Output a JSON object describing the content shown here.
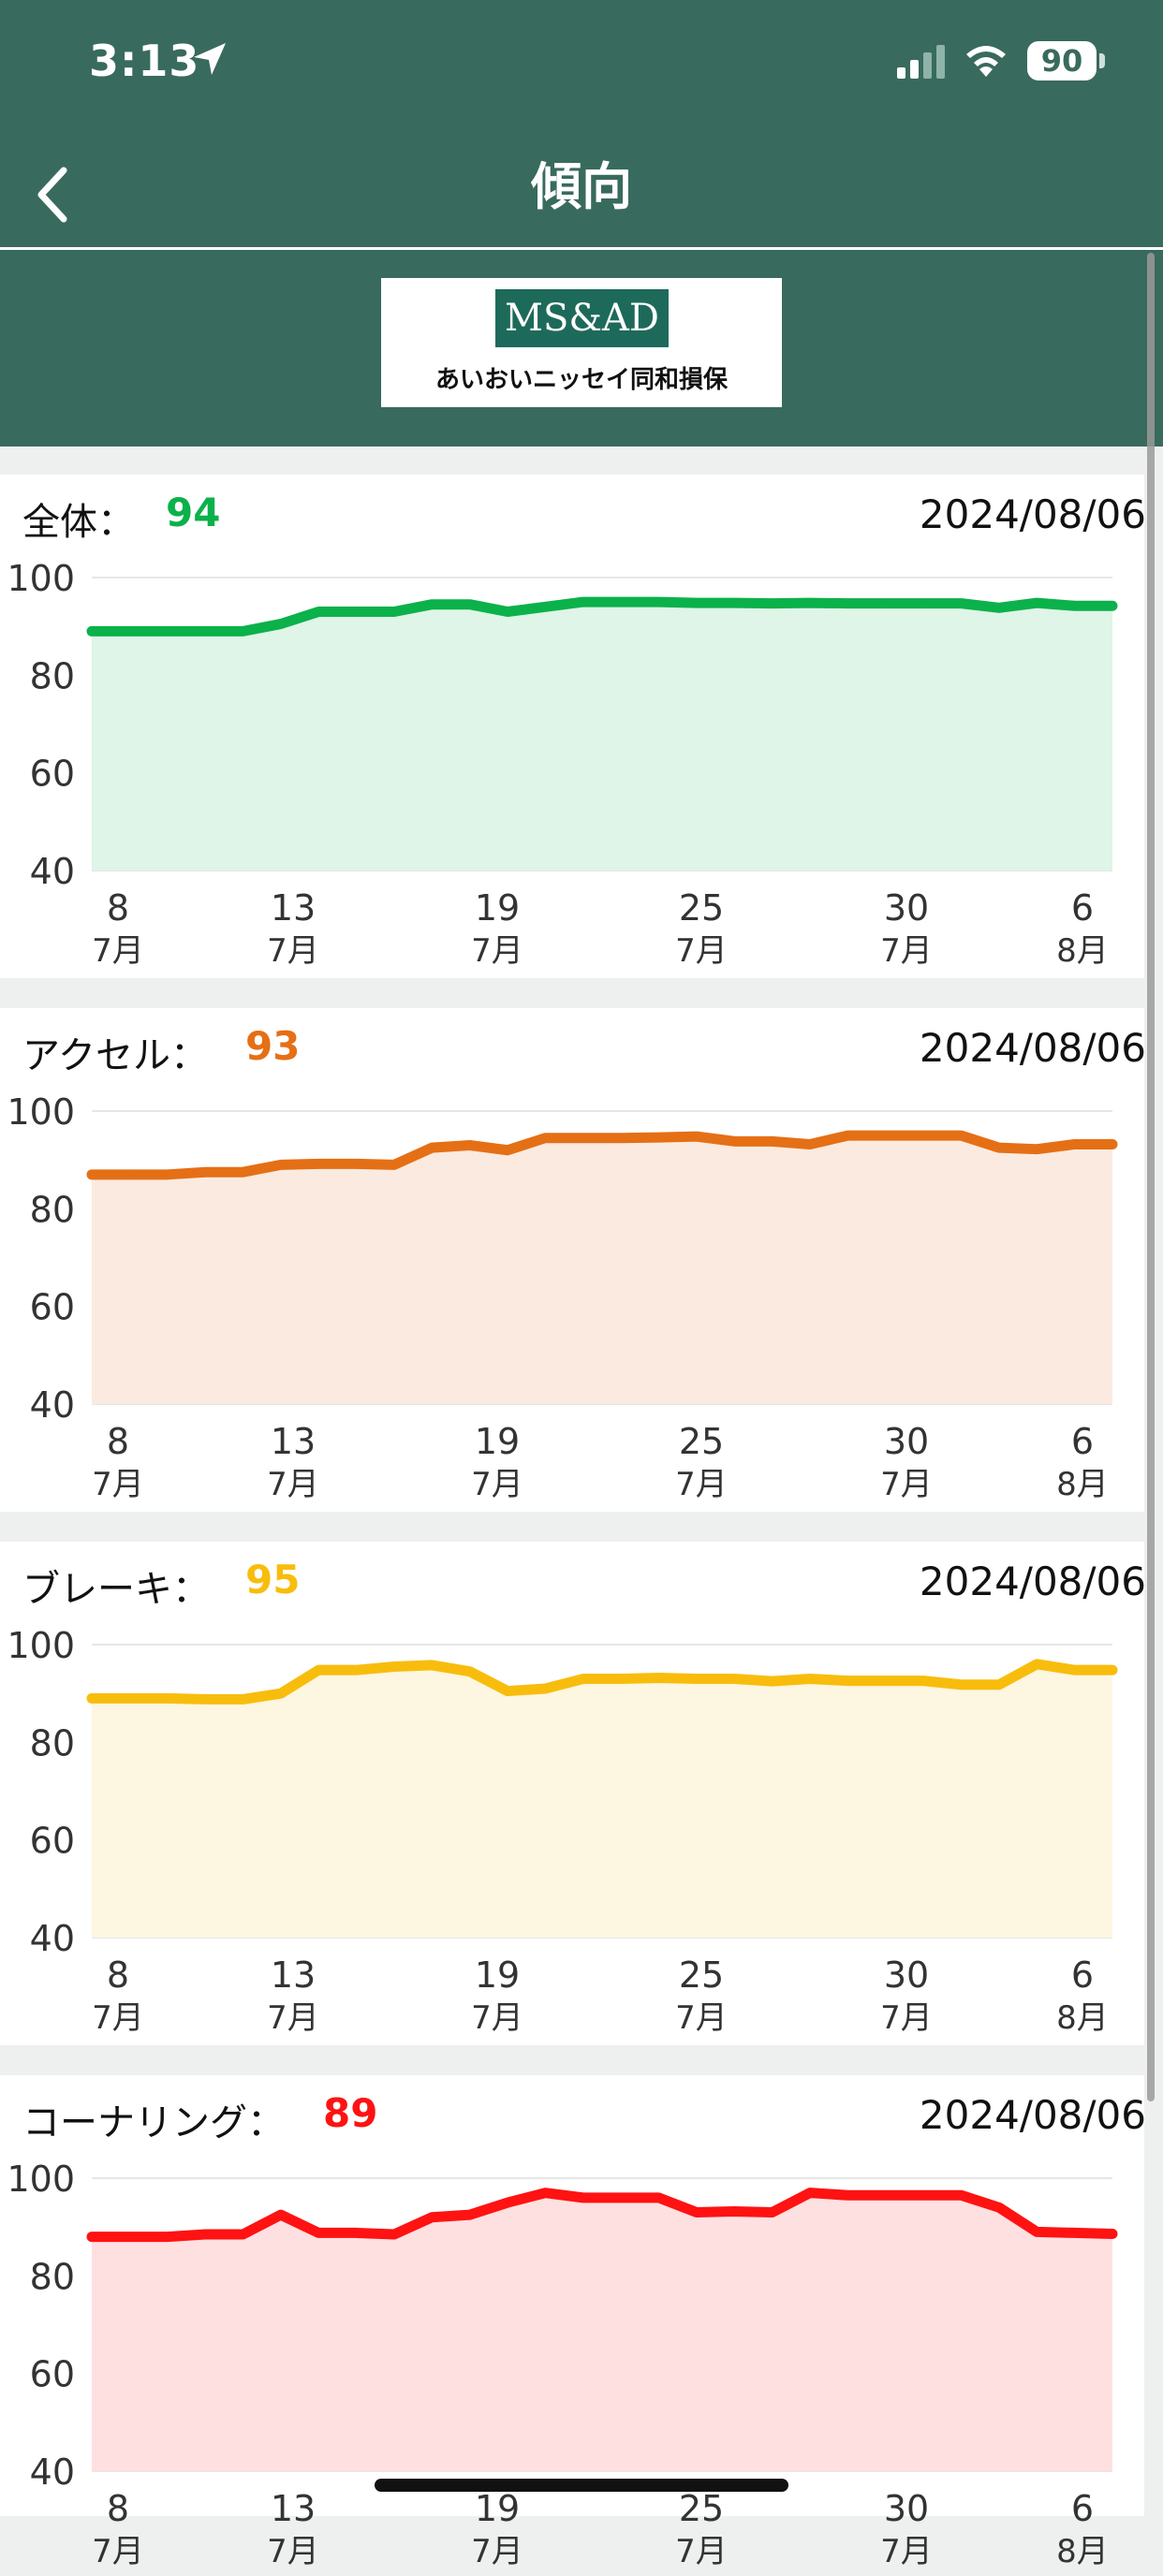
{
  "status": {
    "time": "3:13",
    "battery": "90"
  },
  "nav": {
    "title": "傾向"
  },
  "brand": {
    "mark": "MS&AD",
    "company": "あいおいニッセイ同和損保"
  },
  "cards": [
    {
      "label": "全体：",
      "score": "94",
      "date": "2024/08/06"
    },
    {
      "label": "アクセル：",
      "score": "93",
      "date": "2024/08/06"
    },
    {
      "label": "ブレーキ：",
      "score": "95",
      "date": "2024/08/06"
    },
    {
      "label": "コーナリング：",
      "score": "89",
      "date": "2024/08/06"
    }
  ],
  "chart_data": [
    {
      "type": "area",
      "title": "全体",
      "color": "#0bb14a",
      "fill": "#def5e7",
      "ylim": [
        40,
        100
      ],
      "yticks": [
        100,
        80,
        60,
        40
      ],
      "xticks": [
        {
          "day": "8",
          "month": "7月"
        },
        {
          "day": "13",
          "month": "7月"
        },
        {
          "day": "19",
          "month": "7月"
        },
        {
          "day": "25",
          "month": "7月"
        },
        {
          "day": "30",
          "month": "7月"
        },
        {
          "day": "6",
          "month": "8月"
        }
      ],
      "values": [
        89,
        89,
        89,
        89,
        89,
        90.5,
        93,
        93,
        93,
        94.5,
        94.5,
        93,
        94,
        95,
        95,
        95,
        94.8,
        94.8,
        94.7,
        94.8,
        94.7,
        94.7,
        94.7,
        94.7,
        93.8,
        94.8,
        94.2,
        94.2
      ]
    },
    {
      "type": "area",
      "title": "アクセル",
      "color": "#e56f15",
      "fill": "#fbeae0",
      "ylim": [
        40,
        100
      ],
      "yticks": [
        100,
        80,
        60,
        40
      ],
      "xticks": [
        {
          "day": "8",
          "month": "7月"
        },
        {
          "day": "13",
          "month": "7月"
        },
        {
          "day": "19",
          "month": "7月"
        },
        {
          "day": "25",
          "month": "7月"
        },
        {
          "day": "30",
          "month": "7月"
        },
        {
          "day": "6",
          "month": "8月"
        }
      ],
      "values": [
        87,
        87,
        87,
        87.5,
        87.5,
        89,
        89.2,
        89.2,
        89,
        92.5,
        93,
        92,
        94.5,
        94.5,
        94.5,
        94.6,
        94.8,
        93.8,
        93.8,
        93.2,
        95,
        95,
        95,
        95,
        92.5,
        92.2,
        93.2,
        93.2
      ]
    },
    {
      "type": "area",
      "title": "ブレーキ",
      "color": "#f8bd0c",
      "fill": "#fdf6e0",
      "ylim": [
        40,
        100
      ],
      "yticks": [
        100,
        80,
        60,
        40
      ],
      "xticks": [
        {
          "day": "8",
          "month": "7月"
        },
        {
          "day": "13",
          "month": "7月"
        },
        {
          "day": "19",
          "month": "7月"
        },
        {
          "day": "25",
          "month": "7月"
        },
        {
          "day": "30",
          "month": "7月"
        },
        {
          "day": "6",
          "month": "8月"
        }
      ],
      "values": [
        89,
        89,
        89,
        88.8,
        88.8,
        90,
        94.8,
        94.8,
        95.5,
        95.8,
        94.5,
        90.5,
        91,
        93,
        93,
        93.2,
        93,
        93,
        92.5,
        93,
        92.6,
        92.6,
        92.6,
        91.8,
        91.8,
        96,
        94.8,
        94.8
      ]
    },
    {
      "type": "area",
      "title": "コーナリング",
      "color": "#ff1212",
      "fill": "#ffe0e1",
      "ylim": [
        40,
        100
      ],
      "yticks": [
        100,
        80,
        60,
        40
      ],
      "xticks": [
        {
          "day": "8",
          "month": "7月"
        },
        {
          "day": "13",
          "month": "7月"
        },
        {
          "day": "19",
          "month": "7月"
        },
        {
          "day": "25",
          "month": "7月"
        },
        {
          "day": "30",
          "month": "7月"
        },
        {
          "day": "6",
          "month": "8月"
        }
      ],
      "values": [
        88,
        88,
        88,
        88.5,
        88.5,
        92.5,
        88.8,
        88.8,
        88.5,
        92,
        92.5,
        95,
        97,
        96,
        96,
        96,
        93,
        93.2,
        93,
        97,
        96.5,
        96.5,
        96.5,
        96.5,
        94,
        89,
        88.8,
        88.6
      ]
    }
  ]
}
